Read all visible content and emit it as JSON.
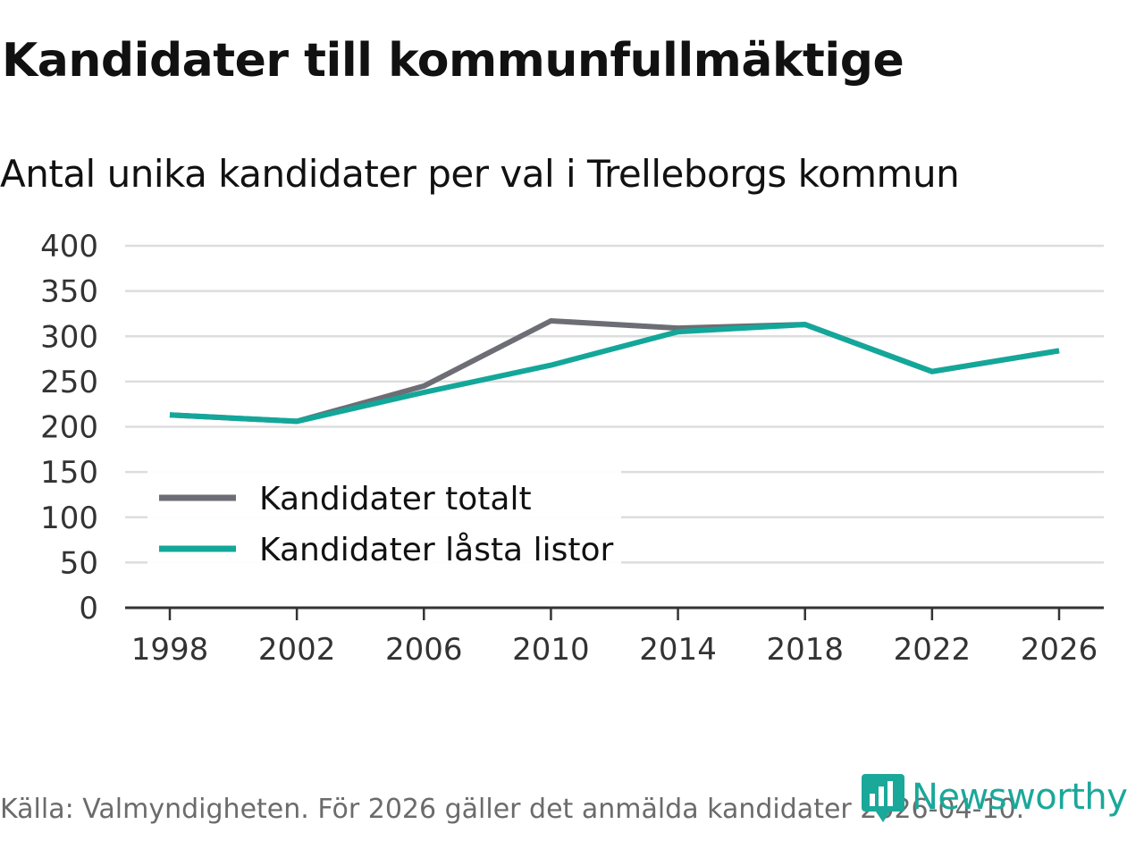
{
  "header": {
    "title": "Kandidater till kommunfullmäktige",
    "subtitle": "Antal unika kandidater per val i Trelleborgs kommun"
  },
  "footer": {
    "source": "Källa: Valmyndigheten. För 2026 gäller det anmälda kandidater 2026-04-10."
  },
  "brand": {
    "name": "Newsworthy",
    "icon": "newsworthy-logo-icon",
    "color": "#1aa89a"
  },
  "chart_data": {
    "type": "line",
    "title": "Kandidater till kommunfullmäktige",
    "subtitle": "Antal unika kandidater per val i Trelleborgs kommun",
    "xlabel": "",
    "ylabel": "",
    "x": [
      "1998",
      "2002",
      "2006",
      "2010",
      "2014",
      "2018",
      "2022",
      "2026"
    ],
    "yticks": [
      0,
      50,
      100,
      150,
      200,
      250,
      300,
      350,
      400
    ],
    "ylim": [
      0,
      400
    ],
    "grid": true,
    "legend_position": "bottom-left",
    "series": [
      {
        "name": "Kandidater totalt",
        "color": "#6d6d75",
        "values": [
          213,
          206,
          245,
          317,
          309,
          313,
          261,
          284
        ]
      },
      {
        "name": "Kandidater låsta listor",
        "color": "#13a79a",
        "values": [
          213,
          206,
          238,
          268,
          305,
          313,
          261,
          284
        ]
      }
    ]
  }
}
